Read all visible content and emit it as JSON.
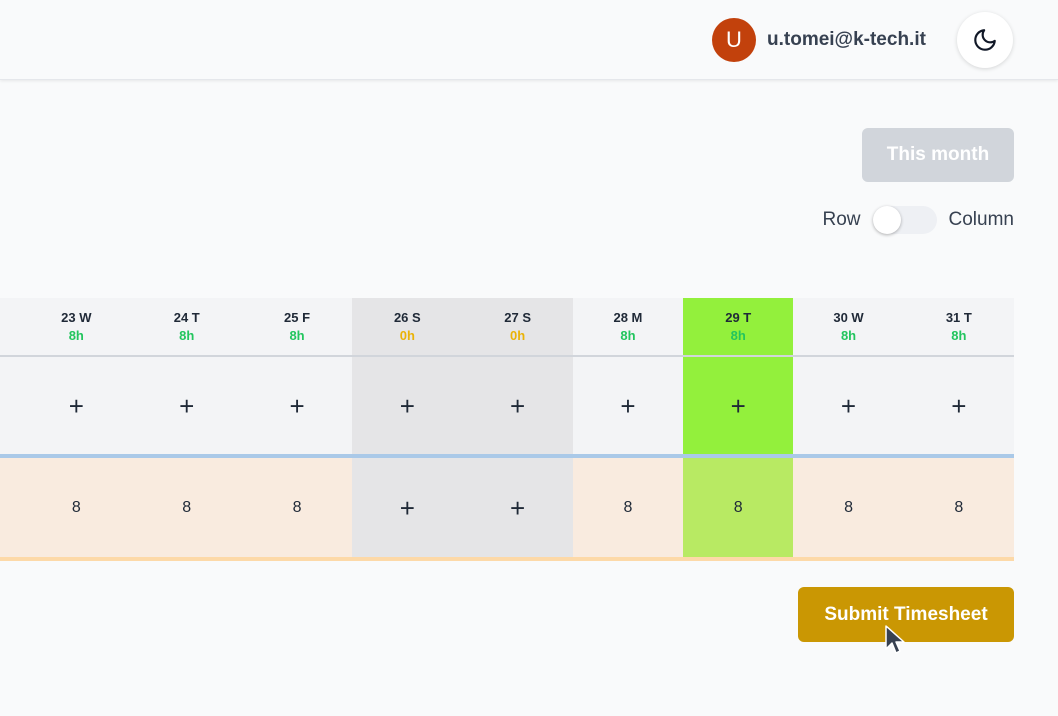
{
  "header": {
    "avatar_letter": "U",
    "user_email": "u.tomei@k-tech.it",
    "theme_icon": "moon-icon",
    "avatar_color": "#c2410c"
  },
  "controls": {
    "this_month_label": "This month",
    "toggle_left_label": "Row",
    "toggle_right_label": "Column"
  },
  "days": [
    {
      "label": "23 W",
      "hours": "8h",
      "type": "workday"
    },
    {
      "label": "24 T",
      "hours": "8h",
      "type": "workday"
    },
    {
      "label": "25 F",
      "hours": "8h",
      "type": "workday"
    },
    {
      "label": "26 S",
      "hours": "0h",
      "type": "weekend"
    },
    {
      "label": "27 S",
      "hours": "0h",
      "type": "weekend"
    },
    {
      "label": "28 M",
      "hours": "8h",
      "type": "workday"
    },
    {
      "label": "29 T",
      "hours": "8h",
      "type": "today"
    },
    {
      "label": "30 W",
      "hours": "8h",
      "type": "workday"
    },
    {
      "label": "31 T",
      "hours": "8h",
      "type": "workday"
    }
  ],
  "row1_cells": [
    "+",
    "+",
    "+",
    "+",
    "+",
    "+",
    "+",
    "+",
    "+"
  ],
  "row2_cells": [
    "8",
    "8",
    "8",
    "+",
    "+",
    "8",
    "8",
    "8",
    "8"
  ],
  "submit_label": "Submit Timesheet",
  "colors": {
    "accent": "#ca9703",
    "today": "#93f03c",
    "hours_ok": "#22c55e",
    "hours_zero": "#eab308"
  }
}
